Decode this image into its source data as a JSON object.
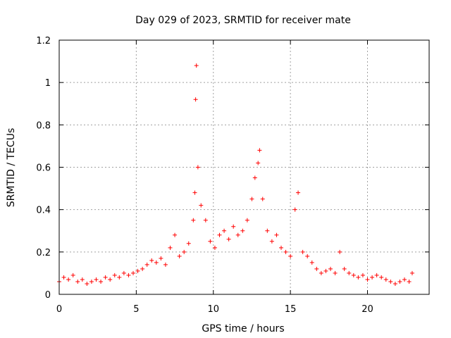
{
  "chart_data": {
    "type": "scatter",
    "title": "Day 029 of 2023, SRMTID for receiver mate",
    "xlabel": "GPS time / hours",
    "ylabel": "SRMTID / TECUs",
    "xlim": [
      0,
      24
    ],
    "ylim": [
      0,
      1.2
    ],
    "x_ticks": [
      0,
      5,
      10,
      15,
      20
    ],
    "x_tick_labels": [
      "0",
      "5",
      "10",
      "15",
      "20"
    ],
    "y_ticks": [
      0,
      0.2,
      0.4,
      0.6,
      0.8,
      1,
      1.2
    ],
    "y_tick_labels": [
      "0",
      "0.2",
      "0.4",
      "0.6",
      "0.8",
      "1",
      "1.2"
    ],
    "grid": true,
    "marker": "+",
    "series": [
      {
        "name": "SRMTID",
        "color": "#ff0000",
        "x": [
          0.0,
          0.3,
          0.6,
          0.9,
          1.2,
          1.5,
          1.8,
          2.1,
          2.4,
          2.7,
          3.0,
          3.3,
          3.6,
          3.9,
          4.2,
          4.5,
          4.8,
          5.1,
          5.4,
          5.7,
          6.0,
          6.3,
          6.6,
          6.9,
          7.2,
          7.5,
          7.8,
          8.1,
          8.4,
          8.7,
          8.8,
          8.85,
          8.9,
          9.0,
          9.2,
          9.5,
          9.8,
          10.1,
          10.4,
          10.7,
          11.0,
          11.3,
          11.6,
          11.9,
          12.2,
          12.5,
          12.7,
          12.9,
          13.0,
          13.2,
          13.5,
          13.8,
          14.1,
          14.4,
          14.7,
          15.0,
          15.3,
          15.5,
          15.8,
          16.1,
          16.4,
          16.7,
          17.0,
          17.3,
          17.6,
          17.9,
          18.2,
          18.5,
          18.8,
          19.1,
          19.4,
          19.7,
          20.0,
          20.3,
          20.6,
          20.9,
          21.2,
          21.5,
          21.8,
          22.1,
          22.4,
          22.7,
          22.9
        ],
        "y": [
          0.06,
          0.08,
          0.07,
          0.09,
          0.06,
          0.07,
          0.05,
          0.06,
          0.07,
          0.06,
          0.08,
          0.07,
          0.09,
          0.08,
          0.1,
          0.09,
          0.1,
          0.11,
          0.12,
          0.14,
          0.16,
          0.15,
          0.17,
          0.14,
          0.22,
          0.28,
          0.18,
          0.2,
          0.24,
          0.35,
          0.48,
          0.92,
          1.08,
          0.6,
          0.42,
          0.35,
          0.25,
          0.22,
          0.28,
          0.3,
          0.26,
          0.32,
          0.28,
          0.3,
          0.35,
          0.45,
          0.55,
          0.62,
          0.68,
          0.45,
          0.3,
          0.25,
          0.28,
          0.22,
          0.2,
          0.18,
          0.4,
          0.48,
          0.2,
          0.18,
          0.15,
          0.12,
          0.1,
          0.11,
          0.12,
          0.1,
          0.2,
          0.12,
          0.1,
          0.09,
          0.08,
          0.09,
          0.07,
          0.08,
          0.09,
          0.08,
          0.07,
          0.06,
          0.05,
          0.06,
          0.07,
          0.06,
          0.1
        ]
      }
    ]
  }
}
